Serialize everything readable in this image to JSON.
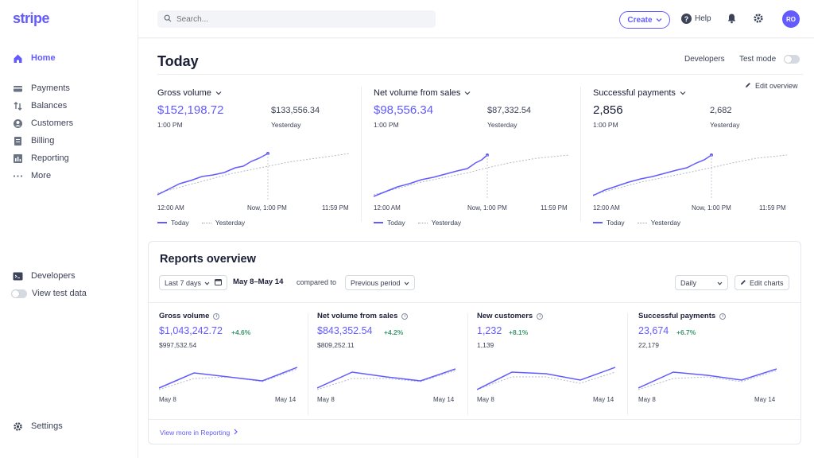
{
  "brand": {
    "logo": "stripe",
    "accent": "#635bff"
  },
  "sidebar": {
    "items": [
      {
        "label": "Home",
        "icon": "home-icon",
        "active": true
      },
      {
        "label": "Payments",
        "icon": "payments-icon"
      },
      {
        "label": "Balances",
        "icon": "balances-icon"
      },
      {
        "label": "Customers",
        "icon": "customers-icon"
      },
      {
        "label": "Billing",
        "icon": "billing-icon"
      },
      {
        "label": "Reporting",
        "icon": "reporting-icon"
      },
      {
        "label": "More",
        "icon": "more-icon"
      }
    ],
    "developers": "Developers",
    "view_test_data": "View test data",
    "settings": "Settings"
  },
  "topbar": {
    "search_placeholder": "Search...",
    "create": "Create",
    "help": "Help",
    "avatar_initials": "RO"
  },
  "today": {
    "title": "Today",
    "developers": "Developers",
    "test_mode": "Test mode",
    "edit_overview": "Edit overview",
    "axis": {
      "start": "12:00 AM",
      "now": "Now, 1:00 PM",
      "end": "11:59 PM"
    },
    "legend": {
      "today": "Today",
      "yesterday": "Yesterday"
    },
    "cards": [
      {
        "label": "Gross volume",
        "value": "$152,198.72",
        "time": "1:00 PM",
        "prev_value": "$133,556.34",
        "prev_label": "Yesterday"
      },
      {
        "label": "Net volume from sales",
        "value": "$98,556.34",
        "time": "1:00 PM",
        "prev_value": "$87,332.54",
        "prev_label": "Yesterday"
      },
      {
        "label": "Successful payments",
        "value": "2,856",
        "time": "1:00 PM",
        "prev_value": "2,682",
        "prev_label": "Yesterday"
      }
    ]
  },
  "reports": {
    "title": "Reports overview",
    "period": "Last 7 days",
    "range": "May 8–May 14",
    "compared_to": "compared to",
    "previous_period": "Previous period",
    "interval": "Daily",
    "edit_charts": "Edit charts",
    "view_more": "View more in Reporting",
    "x_start": "May 8",
    "x_end": "May 14",
    "cards": [
      {
        "label": "Gross volume",
        "value": "$1,043,242.72",
        "delta": "+4.6%",
        "prev": "$997,532.54"
      },
      {
        "label": "Net volume from sales",
        "value": "$843,352.54",
        "delta": "+4.2%",
        "prev": "$809,252.11"
      },
      {
        "label": "New customers",
        "value": "1,232",
        "delta": "+8.1%",
        "prev": "1,139"
      },
      {
        "label": "Successful payments",
        "value": "23,674",
        "delta": "+6.7%",
        "prev": "22,179"
      }
    ]
  },
  "colors": {
    "positive": "#3d9a6e",
    "muted_line": "#9aa0ad"
  }
}
